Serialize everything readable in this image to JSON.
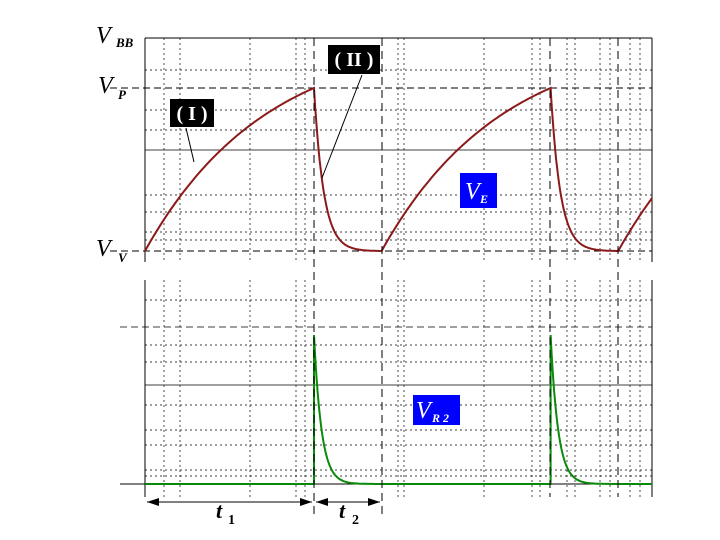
{
  "chart_data": [
    {
      "type": "line",
      "series": [
        {
          "name": "VE",
          "color": "#8b1a1a",
          "segments": [
            {
              "phase": "charge",
              "from": "V V",
              "to": "V P",
              "t_start": 0,
              "t_end": 1
            },
            {
              "phase": "discharge",
              "from": "V P",
              "to": "V V",
              "t_start": 1,
              "t_end": 1.4
            },
            {
              "phase": "charge",
              "from": "V V",
              "to": "V P",
              "t_start": 1.4,
              "t_end": 2.4
            },
            {
              "phase": "discharge",
              "from": "V P",
              "to": "V V",
              "t_start": 2.4,
              "t_end": 2.8
            },
            {
              "phase": "charge",
              "from": "V V",
              "to": "partial",
              "t_start": 2.8,
              "t_end": 3.0
            }
          ]
        }
      ],
      "y_levels": [
        "V BB",
        "V P",
        "V V"
      ],
      "annotations": [
        "( I )",
        "( II )"
      ],
      "label": {
        "main": "V",
        "sub": "E"
      }
    },
    {
      "type": "line",
      "series": [
        {
          "name": "VR2",
          "color": "#0a8a0a",
          "spikes_at": [
            1,
            2.4
          ],
          "spike_height_fraction": 0.98
        }
      ],
      "label": {
        "main": "V",
        "sub": "R 2"
      }
    }
  ],
  "top": {
    "levels": [
      {
        "main": "V",
        "sub": "BB"
      },
      {
        "main": "V",
        "sub": "P"
      },
      {
        "main": "V",
        "sub": "V"
      }
    ],
    "annot_1": "( I )",
    "annot_2": "( II )",
    "ve_main": "V",
    "ve_sub": "E"
  },
  "bottom": {
    "vr2_main": "V",
    "vr2_sub": "R 2"
  },
  "timing": {
    "t1_main": "t",
    "t1_sub": "1",
    "t2_main": "t",
    "t2_sub": "2"
  },
  "colors": {
    "ve_curve": "#8b1a1a",
    "vr2_curve": "#0a8a0a",
    "label_blue": "#0000ff",
    "label_dark": "#000000"
  }
}
